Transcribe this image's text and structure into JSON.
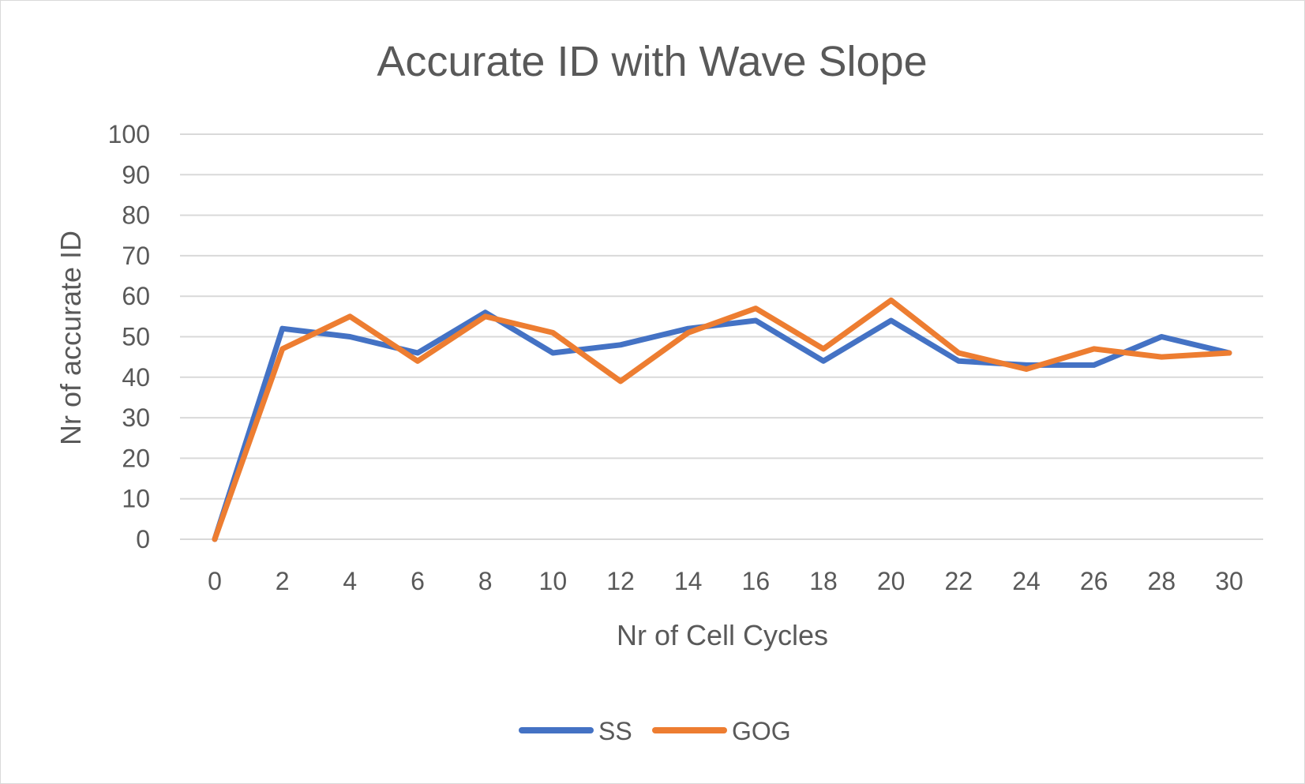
{
  "chart_data": {
    "type": "line",
    "title": "Accurate ID with Wave Slope",
    "xlabel": "Nr of Cell Cycles",
    "ylabel": "Nr of accurate ID",
    "x": [
      0,
      2,
      4,
      6,
      8,
      10,
      12,
      14,
      16,
      18,
      20,
      22,
      24,
      26,
      28,
      30
    ],
    "ylim": [
      0,
      100
    ],
    "yticks": [
      0,
      10,
      20,
      30,
      40,
      50,
      60,
      70,
      80,
      90,
      100
    ],
    "grid": true,
    "legend_position": "bottom",
    "series": [
      {
        "name": "SS",
        "color": "#4472C4",
        "values": [
          0,
          52,
          50,
          46,
          56,
          46,
          48,
          52,
          54,
          44,
          54,
          44,
          43,
          43,
          50,
          46
        ]
      },
      {
        "name": "GOG",
        "color": "#ED7D31",
        "values": [
          0,
          47,
          55,
          44,
          55,
          51,
          39,
          51,
          57,
          47,
          59,
          46,
          42,
          47,
          45,
          46
        ]
      }
    ]
  }
}
